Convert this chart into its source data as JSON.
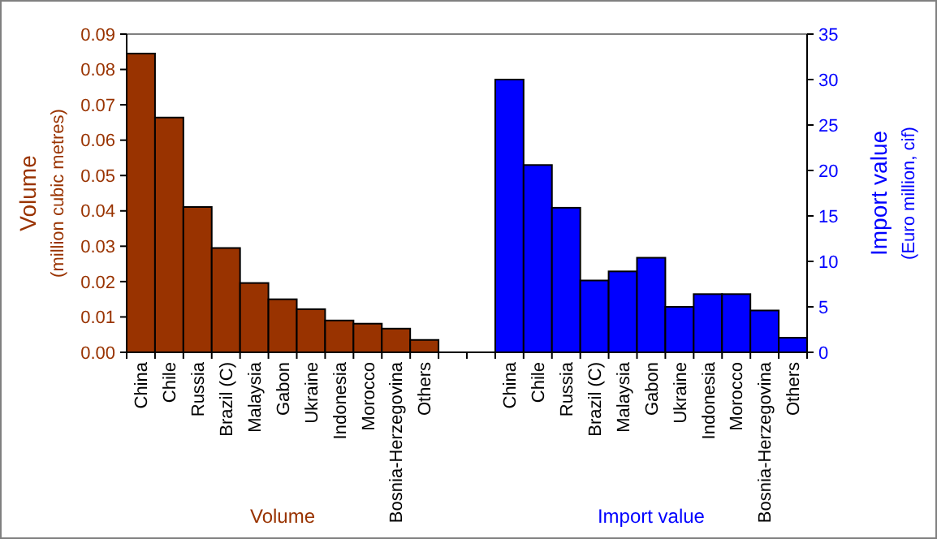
{
  "chart_data": {
    "type": "bar",
    "categories": [
      "China",
      "Chile",
      "Russia",
      "Brazil (C)",
      "Malaysia",
      "Gabon",
      "Ukraine",
      "Indonesia",
      "Morocco",
      "Bosnia-Herzegovina",
      "Others",
      null,
      null,
      "China",
      "Chile",
      "Russia",
      "Brazil (C)",
      "Malaysia",
      "Gabon",
      "Ukraine",
      "Indonesia",
      "Morocco",
      "Bosnia-Herzegovina",
      "Others"
    ],
    "series": [
      {
        "name": "Volume",
        "color": "#993300",
        "values": [
          0.0845,
          0.0664,
          0.0411,
          0.0295,
          0.0196,
          0.015,
          0.0122,
          0.009,
          0.0081,
          0.0067,
          0.0035,
          null,
          null,
          null,
          null,
          null,
          null,
          null,
          null,
          null,
          null,
          null,
          null,
          null
        ]
      },
      {
        "name": "Import value",
        "color": "#0000ff",
        "axis": "y2",
        "values": [
          null,
          null,
          null,
          null,
          null,
          null,
          null,
          null,
          null,
          null,
          null,
          null,
          null,
          30,
          20.6,
          15.9,
          7.9,
          8.9,
          10.4,
          5.0,
          6.4,
          6.4,
          4.6,
          1.6
        ]
      }
    ],
    "ylabel": "Volume\n(million cubic metres)",
    "y2label": "Import value\n(Euro million, cif)",
    "ylim": [
      0,
      0.09
    ],
    "yticks": [
      {
        "value": 0,
        "label": "0.00"
      },
      0.01,
      0.02,
      0.03,
      0.04,
      0.05,
      0.06,
      0.07,
      0.08,
      0.09
    ],
    "y2lim": [
      0,
      35
    ],
    "y2ticks": [
      0,
      5,
      10,
      15,
      20,
      25,
      30,
      35
    ]
  }
}
